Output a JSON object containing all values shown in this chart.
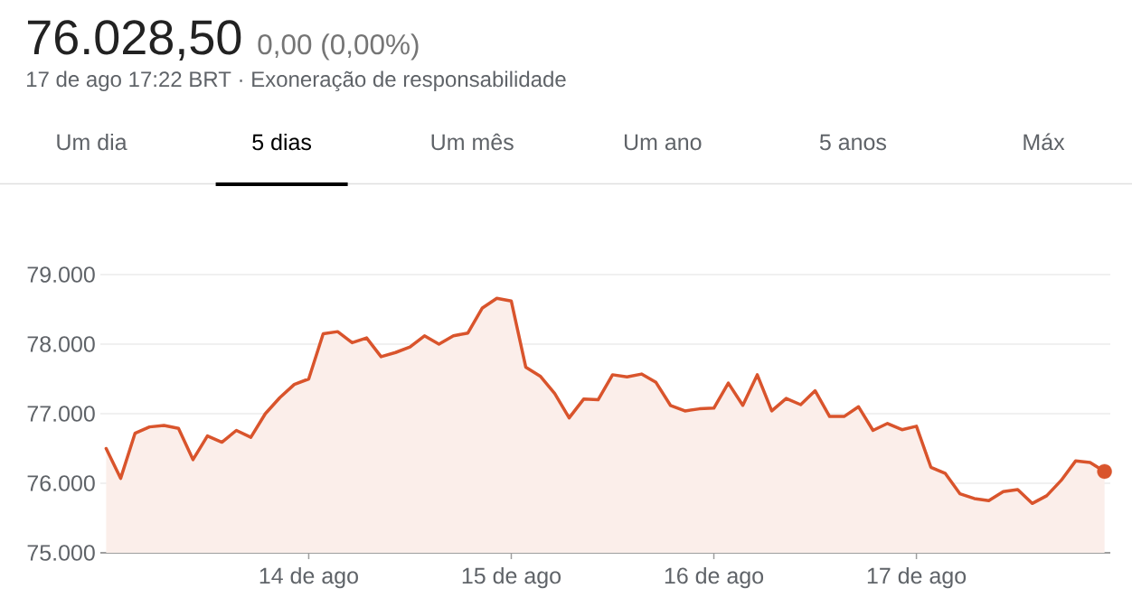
{
  "chart_data": {
    "type": "area",
    "title": "76.028,50",
    "subtitle": "0,00 (0,00%)",
    "annotations": [
      "17 de ago 17:22 BRT · Exoneração de responsabilidade",
      "Um dia",
      "5 dias",
      "Um mês",
      "Um ano",
      "5 anos",
      "Máx"
    ],
    "categories": [
      null,
      null,
      null,
      null,
      null,
      null,
      null,
      null,
      null,
      null,
      null,
      null,
      null,
      null,
      "14 de ago",
      null,
      null,
      null,
      null,
      null,
      null,
      null,
      null,
      null,
      null,
      null,
      null,
      null,
      "15 de ago",
      null,
      null,
      null,
      null,
      null,
      null,
      null,
      null,
      null,
      null,
      null,
      null,
      null,
      "16 de ago",
      null,
      null,
      null,
      null,
      null,
      null,
      null,
      null,
      null,
      null,
      null,
      null,
      null,
      "17 de ago",
      null,
      null,
      null,
      null,
      null,
      null,
      null,
      null,
      null,
      null,
      null,
      null,
      null
    ],
    "series": [
      {
        "color": "#d9542c",
        "values": [
          76500,
          76070,
          76720,
          76810,
          76830,
          76790,
          76340,
          76680,
          76590,
          76760,
          76660,
          77000,
          77230,
          77420,
          77500,
          78150,
          78180,
          78020,
          78090,
          77820,
          77880,
          77960,
          78120,
          78000,
          78120,
          78160,
          78520,
          78660,
          78620,
          77670,
          77540,
          77290,
          76940,
          77210,
          77200,
          77560,
          77530,
          77570,
          77450,
          77120,
          77040,
          77070,
          77080,
          77440,
          77120,
          77560,
          77040,
          77220,
          77130,
          77330,
          76960,
          76960,
          77100,
          76760,
          76860,
          76770,
          76820,
          76230,
          76140,
          75850,
          75780,
          75750,
          75880,
          75910,
          75710,
          75820,
          76040,
          76320,
          76300,
          76170
        ]
      },
      {
        "type": "scatter",
        "color": "#d9542c",
        "marker": "circle",
        "values": [
          null,
          null,
          null,
          null,
          null,
          null,
          null,
          null,
          null,
          null,
          null,
          null,
          null,
          null,
          null,
          null,
          null,
          null,
          null,
          null,
          null,
          null,
          null,
          null,
          null,
          null,
          null,
          null,
          null,
          null,
          null,
          null,
          null,
          null,
          null,
          null,
          null,
          null,
          null,
          null,
          null,
          null,
          null,
          null,
          null,
          null,
          null,
          null,
          null,
          null,
          null,
          null,
          null,
          null,
          null,
          null,
          null,
          null,
          null,
          null,
          null,
          null,
          null,
          null,
          null,
          null,
          null,
          null,
          null,
          76170
        ]
      }
    ],
    "ylim": [
      75000,
      79000
    ],
    "yticks": [
      {
        "value": 75000,
        "label": "75.000"
      },
      {
        "value": 76000,
        "label": "76.000"
      },
      {
        "value": 77000,
        "label": "77.000"
      },
      {
        "value": 78000,
        "label": "78.000"
      },
      {
        "value": 79000,
        "label": "79.000"
      }
    ],
    "grid": "y"
  }
}
